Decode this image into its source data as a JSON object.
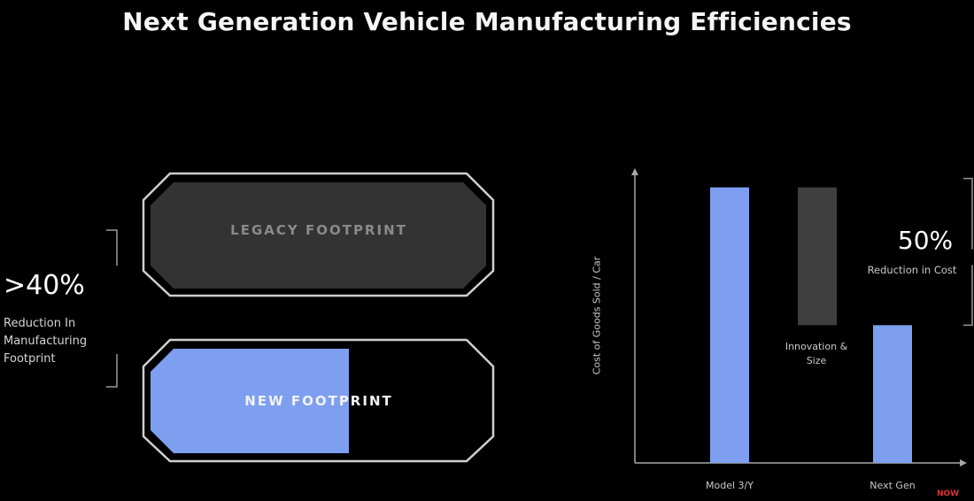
{
  "slide": {
    "title": "Next Generation Vehicle Manufacturing Efficiencies"
  },
  "footprint": {
    "legacy_label": "LEGACY FOOTPRINT",
    "new_label": "NEW FOOTPRINT",
    "reduction_value": ">40%",
    "reduction_text": "Reduction In Manufacturing Footprint",
    "legacy_color": "#333333",
    "new_color": "#7e9ff0"
  },
  "chart_data": {
    "type": "bar",
    "categories": [
      "Model 3/Y",
      "Next Gen"
    ],
    "ylabel": "Cost of Goods Sold / Car",
    "xlabel": "",
    "series": [
      {
        "values": [
          100,
          50
        ],
        "color": "#7e9ff0"
      }
    ],
    "waterfall_step": {
      "label": "Innovation & Size",
      "from": 100,
      "to": 50,
      "color": "#3f3f3f"
    },
    "annotation": {
      "value": "50%",
      "text": "Reduction in Cost"
    },
    "ylim": [
      0,
      106
    ],
    "grid": false
  },
  "watermark": "NOW"
}
